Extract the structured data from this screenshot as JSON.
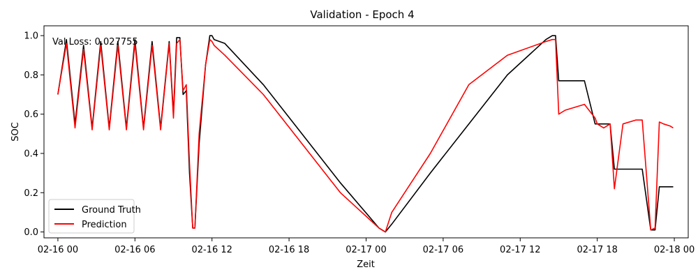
{
  "chart_data": {
    "type": "line",
    "title": "Validation - Epoch 4",
    "xlabel": "Zeit",
    "ylabel": "SOC",
    "annotation": "Val Loss: 0.027755",
    "x_ticks": [
      "02-16 00",
      "02-16 06",
      "02-16 12",
      "02-16 18",
      "02-17 00",
      "02-17 06",
      "02-17 12",
      "02-17 18",
      "02-18 00"
    ],
    "y_ticks": [
      "0.0",
      "0.2",
      "0.4",
      "0.6",
      "0.8",
      "1.0"
    ],
    "xlim": [
      "02-15 22:55",
      "02-18 01:05"
    ],
    "ylim": [
      -0.03,
      1.05
    ],
    "legend_position": "lower-left",
    "grid": false,
    "series": [
      {
        "name": "Ground Truth",
        "color": "#000000",
        "x": [
          "02-16 00:00",
          "02-16 00:40",
          "02-16 01:20",
          "02-16 02:00",
          "02-16 02:40",
          "02-16 03:20",
          "02-16 04:00",
          "02-16 04:40",
          "02-16 05:20",
          "02-16 06:00",
          "02-16 06:40",
          "02-16 07:20",
          "02-16 08:00",
          "02-16 08:40",
          "02-16 09:00",
          "02-16 09:15",
          "02-16 09:30",
          "02-16 09:45",
          "02-16 10:00",
          "02-16 10:15",
          "02-16 10:30",
          "02-16 10:40",
          "02-16 11:00",
          "02-16 11:30",
          "02-16 11:50",
          "02-16 12:00",
          "02-16 12:10",
          "02-16 13:00",
          "02-16 16:00",
          "02-16 19:00",
          "02-16 22:00",
          "02-17 01:00",
          "02-17 01:30",
          "02-17 02:00",
          "02-17 05:00",
          "02-17 08:00",
          "02-17 11:00",
          "02-17 14:00",
          "02-17 14:30",
          "02-17 14:45",
          "02-17 15:00",
          "02-17 15:30",
          "02-17 17:00",
          "02-17 17:50",
          "02-17 18:00",
          "02-17 18:30",
          "02-17 19:00",
          "02-17 19:20",
          "02-17 20:00",
          "02-17 21:00",
          "02-17 21:30",
          "02-17 22:10",
          "02-17 22:30",
          "02-17 22:50",
          "02-17 23:10",
          "02-17 23:40",
          "02-17 23:55"
        ],
        "y": [
          0.7,
          0.98,
          0.55,
          0.95,
          0.53,
          0.97,
          0.53,
          0.97,
          0.53,
          0.98,
          0.53,
          0.97,
          0.53,
          0.97,
          0.6,
          0.99,
          0.99,
          0.7,
          0.72,
          0.3,
          0.02,
          0.02,
          0.45,
          0.85,
          1.0,
          1.0,
          0.98,
          0.96,
          0.75,
          0.5,
          0.25,
          0.02,
          0.0,
          0.04,
          0.3,
          0.55,
          0.8,
          0.98,
          1.0,
          1.0,
          0.77,
          0.77,
          0.77,
          0.55,
          0.55,
          0.55,
          0.55,
          0.32,
          0.32,
          0.32,
          0.32,
          0.01,
          0.01,
          0.23,
          0.23,
          0.23,
          0.23
        ]
      },
      {
        "name": "Prediction",
        "color": "#ff0000",
        "x": [
          "02-16 00:00",
          "02-16 00:40",
          "02-16 01:20",
          "02-16 02:00",
          "02-16 02:40",
          "02-16 03:20",
          "02-16 04:00",
          "02-16 04:40",
          "02-16 05:20",
          "02-16 06:00",
          "02-16 06:40",
          "02-16 07:20",
          "02-16 08:00",
          "02-16 08:40",
          "02-16 09:00",
          "02-16 09:15",
          "02-16 09:30",
          "02-16 09:45",
          "02-16 10:00",
          "02-16 10:15",
          "02-16 10:30",
          "02-16 10:40",
          "02-16 11:00",
          "02-16 11:30",
          "02-16 11:50",
          "02-16 12:00",
          "02-16 12:10",
          "02-16 13:00",
          "02-16 16:00",
          "02-16 19:00",
          "02-16 22:00",
          "02-17 01:00",
          "02-17 01:30",
          "02-17 02:00",
          "02-17 05:00",
          "02-17 08:00",
          "02-17 11:00",
          "02-17 14:00",
          "02-17 14:30",
          "02-17 14:45",
          "02-17 15:00",
          "02-17 15:30",
          "02-17 17:00",
          "02-17 17:50",
          "02-17 18:00",
          "02-17 18:30",
          "02-17 19:00",
          "02-17 19:20",
          "02-17 20:00",
          "02-17 21:00",
          "02-17 21:30",
          "02-17 22:10",
          "02-17 22:30",
          "02-17 22:50",
          "02-17 23:10",
          "02-17 23:40",
          "02-17 23:55"
        ],
        "y": [
          0.7,
          0.96,
          0.53,
          0.93,
          0.52,
          0.95,
          0.52,
          0.95,
          0.52,
          0.96,
          0.52,
          0.95,
          0.52,
          0.96,
          0.58,
          0.96,
          0.98,
          0.72,
          0.75,
          0.35,
          0.02,
          0.02,
          0.5,
          0.85,
          0.98,
          0.97,
          0.95,
          0.9,
          0.7,
          0.45,
          0.2,
          0.02,
          0.0,
          0.1,
          0.4,
          0.75,
          0.9,
          0.97,
          0.98,
          0.98,
          0.6,
          0.62,
          0.65,
          0.58,
          0.55,
          0.53,
          0.55,
          0.22,
          0.55,
          0.57,
          0.57,
          0.01,
          0.02,
          0.56,
          0.55,
          0.54,
          0.53
        ]
      }
    ]
  }
}
